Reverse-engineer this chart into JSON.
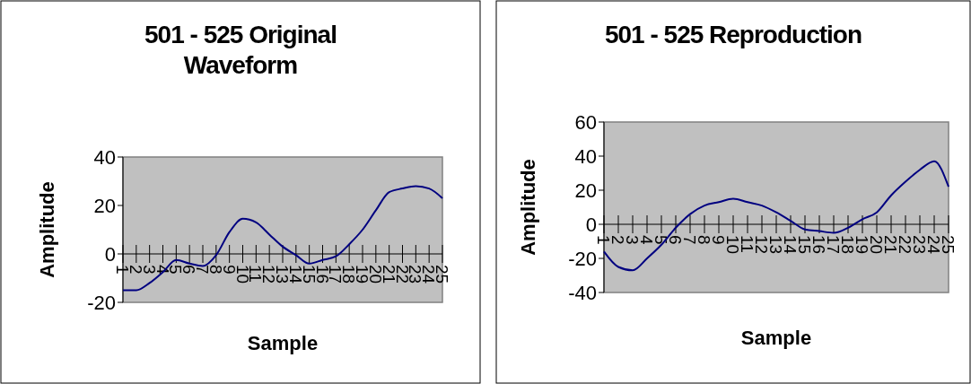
{
  "chart_data": [
    {
      "type": "line",
      "title": "501 - 525 Original Waveform",
      "xlabel": "Sample",
      "ylabel": "Amplitude",
      "categories": [
        "1",
        "2",
        "3",
        "4",
        "5",
        "6",
        "7",
        "8",
        "9",
        "10",
        "11",
        "12",
        "13",
        "14",
        "15",
        "16",
        "17",
        "18",
        "19",
        "20",
        "21",
        "22",
        "23",
        "24",
        "25"
      ],
      "series": [
        {
          "color": "#000080",
          "values": [
            -15,
            -15,
            -12,
            -7.5,
            -2.5,
            -4,
            -5,
            -0.5,
            9,
            14.5,
            13,
            8,
            3,
            -0.5,
            -4,
            -2.5,
            -1,
            4,
            10,
            18,
            25.5,
            27,
            28,
            27,
            23
          ]
        }
      ],
      "ylim": [
        -20,
        40
      ],
      "yticks": [
        -20,
        0,
        20,
        40
      ],
      "grid": false,
      "marker": "none",
      "line_style": "solid"
    },
    {
      "type": "line",
      "title": "501 - 525 Reproduction",
      "xlabel": "Sample",
      "ylabel": "Amplitude",
      "categories": [
        "1",
        "2",
        "3",
        "4",
        "5",
        "6",
        "7",
        "8",
        "9",
        "10",
        "11",
        "12",
        "13",
        "14",
        "15",
        "16",
        "17",
        "18",
        "19",
        "20",
        "21",
        "22",
        "23",
        "24",
        "25"
      ],
      "series": [
        {
          "color": "#000080",
          "values": [
            -16,
            -25,
            -27,
            -20,
            -12,
            -2,
            6,
            11,
            13,
            15,
            13,
            11,
            7,
            2,
            -3,
            -4,
            -5,
            -2,
            3,
            7,
            17,
            25,
            32,
            37,
            22
          ]
        }
      ],
      "ylim": [
        -40,
        60
      ],
      "yticks": [
        -40,
        -20,
        0,
        20,
        40,
        60
      ],
      "grid": false,
      "marker": "none",
      "line_style": "solid"
    }
  ]
}
